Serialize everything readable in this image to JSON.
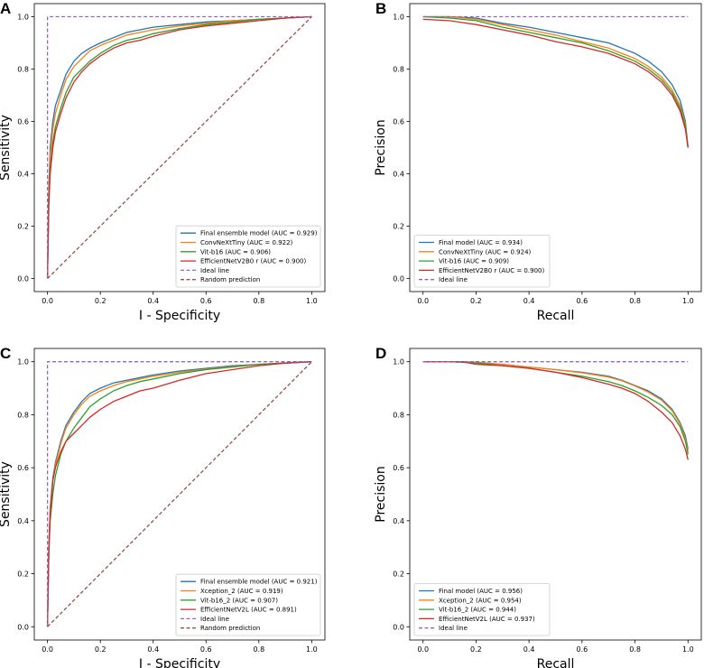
{
  "figure": {
    "colors": {
      "blue": "#1f77b4",
      "orange": "#ff7f0e",
      "green": "#2ca02c",
      "red": "#d62728",
      "purple": "#9467bd",
      "brown": "#8c564b"
    }
  },
  "chart_data": [
    {
      "panel": "A",
      "type": "line",
      "kind": "roc",
      "xlabel": "I - Specificity",
      "ylabel": "Sensitivity",
      "xlim": [
        0,
        1
      ],
      "ylim": [
        0,
        1
      ],
      "xticks": [
        "0.0",
        "0.2",
        "0.4",
        "0.6",
        "0.8",
        "1.0"
      ],
      "yticks": [
        "0.0",
        "0.2",
        "0.4",
        "0.6",
        "0.8",
        "1.0"
      ],
      "legend_position": "lower-right",
      "series": [
        {
          "name": "Final ensemble model (AUC = 0.929)",
          "color": "#1f77b4",
          "x": [
            0,
            0.005,
            0.01,
            0.02,
            0.03,
            0.05,
            0.07,
            0.1,
            0.13,
            0.16,
            0.2,
            0.25,
            0.3,
            0.35,
            0.4,
            0.5,
            0.6,
            0.7,
            0.8,
            0.9,
            1.0
          ],
          "y": [
            0,
            0.35,
            0.5,
            0.6,
            0.66,
            0.72,
            0.78,
            0.83,
            0.86,
            0.88,
            0.9,
            0.92,
            0.94,
            0.95,
            0.96,
            0.97,
            0.98,
            0.985,
            0.99,
            0.995,
            1.0
          ]
        },
        {
          "name": "ConvNeXtTiny (AUC = 0.922)",
          "color": "#ff7f0e",
          "x": [
            0,
            0.005,
            0.01,
            0.02,
            0.03,
            0.05,
            0.07,
            0.1,
            0.13,
            0.16,
            0.2,
            0.25,
            0.3,
            0.35,
            0.4,
            0.5,
            0.6,
            0.7,
            0.8,
            0.9,
            1.0
          ],
          "y": [
            0,
            0.33,
            0.47,
            0.57,
            0.63,
            0.7,
            0.76,
            0.81,
            0.84,
            0.87,
            0.89,
            0.91,
            0.93,
            0.94,
            0.95,
            0.965,
            0.975,
            0.985,
            0.99,
            0.995,
            1.0
          ]
        },
        {
          "name": "Vit-b16 (AUC = 0.906)",
          "color": "#2ca02c",
          "x": [
            0,
            0.005,
            0.01,
            0.02,
            0.03,
            0.05,
            0.07,
            0.1,
            0.13,
            0.16,
            0.2,
            0.25,
            0.3,
            0.35,
            0.4,
            0.5,
            0.6,
            0.7,
            0.8,
            0.9,
            1.0
          ],
          "y": [
            0,
            0.3,
            0.42,
            0.52,
            0.58,
            0.65,
            0.71,
            0.77,
            0.8,
            0.83,
            0.86,
            0.89,
            0.91,
            0.92,
            0.935,
            0.955,
            0.97,
            0.98,
            0.99,
            0.995,
            1.0
          ]
        },
        {
          "name": "EfficientNetV2B0 r (AUC = 0.900)",
          "color": "#d62728",
          "x": [
            0,
            0.005,
            0.01,
            0.02,
            0.03,
            0.05,
            0.07,
            0.1,
            0.13,
            0.16,
            0.2,
            0.25,
            0.3,
            0.35,
            0.4,
            0.5,
            0.6,
            0.7,
            0.8,
            0.9,
            1.0
          ],
          "y": [
            0,
            0.28,
            0.4,
            0.5,
            0.56,
            0.63,
            0.69,
            0.75,
            0.79,
            0.82,
            0.85,
            0.88,
            0.9,
            0.91,
            0.925,
            0.95,
            0.965,
            0.975,
            0.985,
            0.995,
            1.0
          ]
        },
        {
          "name": "Ideal line",
          "color": "#9467bd",
          "dashed": true,
          "x": [
            0,
            0,
            1
          ],
          "y": [
            0,
            1,
            1
          ]
        },
        {
          "name": "Random prediction",
          "color": "#8c564b",
          "dashed": true,
          "x": [
            0,
            1
          ],
          "y": [
            0,
            1
          ]
        }
      ]
    },
    {
      "panel": "B",
      "type": "line",
      "kind": "precision-recall",
      "xlabel": "Recall",
      "ylabel": "Precision",
      "xlim": [
        0,
        1
      ],
      "ylim": [
        0,
        1
      ],
      "xticks": [
        "0.0",
        "0.2",
        "0.4",
        "0.6",
        "0.8",
        "1.0"
      ],
      "yticks": [
        "0.0",
        "0.2",
        "0.4",
        "0.6",
        "0.8",
        "1.0"
      ],
      "legend_position": "lower-left",
      "series": [
        {
          "name": "Final model (AUC = 0.934)",
          "color": "#1f77b4",
          "x": [
            0,
            0.1,
            0.2,
            0.3,
            0.4,
            0.5,
            0.6,
            0.7,
            0.75,
            0.8,
            0.85,
            0.9,
            0.94,
            0.97,
            0.99,
            1.0
          ],
          "y": [
            1.0,
            1.0,
            0.995,
            0.975,
            0.96,
            0.94,
            0.92,
            0.9,
            0.88,
            0.86,
            0.83,
            0.79,
            0.74,
            0.68,
            0.6,
            0.5
          ]
        },
        {
          "name": "ConvNeXtTiny (AUC = 0.924)",
          "color": "#ff7f0e",
          "x": [
            0,
            0.1,
            0.2,
            0.3,
            0.4,
            0.5,
            0.6,
            0.7,
            0.75,
            0.8,
            0.85,
            0.9,
            0.94,
            0.97,
            0.99,
            1.0
          ],
          "y": [
            1.0,
            1.0,
            0.99,
            0.97,
            0.95,
            0.93,
            0.905,
            0.88,
            0.86,
            0.84,
            0.81,
            0.77,
            0.72,
            0.66,
            0.59,
            0.5
          ]
        },
        {
          "name": "Vit-b16 (AUC = 0.909)",
          "color": "#2ca02c",
          "x": [
            0,
            0.1,
            0.2,
            0.3,
            0.4,
            0.5,
            0.6,
            0.7,
            0.75,
            0.8,
            0.85,
            0.9,
            0.94,
            0.97,
            0.99,
            1.0
          ],
          "y": [
            1.0,
            0.995,
            0.985,
            0.96,
            0.94,
            0.92,
            0.9,
            0.87,
            0.85,
            0.83,
            0.8,
            0.76,
            0.71,
            0.65,
            0.58,
            0.5
          ]
        },
        {
          "name": "EfficientNetV2B0 r (AUC = 0.900)",
          "color": "#d62728",
          "x": [
            0,
            0.1,
            0.2,
            0.3,
            0.4,
            0.5,
            0.6,
            0.7,
            0.75,
            0.8,
            0.85,
            0.9,
            0.94,
            0.97,
            0.99,
            1.0
          ],
          "y": [
            0.99,
            0.985,
            0.97,
            0.95,
            0.93,
            0.905,
            0.885,
            0.86,
            0.84,
            0.82,
            0.79,
            0.75,
            0.7,
            0.64,
            0.57,
            0.5
          ]
        },
        {
          "name": "Ideal line",
          "color": "#9467bd",
          "dashed": true,
          "x": [
            0,
            1
          ],
          "y": [
            1,
            1
          ]
        }
      ]
    },
    {
      "panel": "C",
      "type": "line",
      "kind": "roc",
      "xlabel": "I - Specificity",
      "ylabel": "Sensitivity",
      "xlim": [
        0,
        1
      ],
      "ylim": [
        0,
        1
      ],
      "xticks": [
        "0.0",
        "0.2",
        "0.4",
        "0.6",
        "0.8",
        "1.0"
      ],
      "yticks": [
        "0.0",
        "0.2",
        "0.4",
        "0.6",
        "0.8",
        "1.0"
      ],
      "legend_position": "lower-right",
      "series": [
        {
          "name": "Final ensemble model (AUC = 0.921)",
          "color": "#1f77b4",
          "x": [
            0,
            0.005,
            0.01,
            0.02,
            0.03,
            0.05,
            0.07,
            0.1,
            0.13,
            0.16,
            0.2,
            0.25,
            0.3,
            0.35,
            0.4,
            0.5,
            0.6,
            0.7,
            0.8,
            0.9,
            1.0
          ],
          "y": [
            0,
            0.3,
            0.45,
            0.56,
            0.62,
            0.7,
            0.76,
            0.81,
            0.85,
            0.88,
            0.9,
            0.92,
            0.93,
            0.94,
            0.95,
            0.965,
            0.975,
            0.985,
            0.99,
            0.995,
            1.0
          ]
        },
        {
          "name": "Xception_2 (AUC = 0.919)",
          "color": "#ff7f0e",
          "x": [
            0,
            0.005,
            0.01,
            0.02,
            0.03,
            0.05,
            0.07,
            0.1,
            0.13,
            0.16,
            0.2,
            0.25,
            0.3,
            0.35,
            0.4,
            0.5,
            0.6,
            0.7,
            0.8,
            0.9,
            1.0
          ],
          "y": [
            0,
            0.3,
            0.44,
            0.55,
            0.61,
            0.69,
            0.75,
            0.8,
            0.84,
            0.87,
            0.89,
            0.91,
            0.925,
            0.935,
            0.945,
            0.96,
            0.972,
            0.982,
            0.99,
            0.995,
            1.0
          ]
        },
        {
          "name": "Vit-b16_2 (AUC = 0.907)",
          "color": "#2ca02c",
          "x": [
            0,
            0.005,
            0.01,
            0.02,
            0.03,
            0.05,
            0.07,
            0.1,
            0.13,
            0.16,
            0.2,
            0.25,
            0.3,
            0.35,
            0.4,
            0.5,
            0.6,
            0.7,
            0.8,
            0.9,
            1.0
          ],
          "y": [
            0,
            0.28,
            0.4,
            0.5,
            0.57,
            0.65,
            0.7,
            0.75,
            0.79,
            0.83,
            0.86,
            0.89,
            0.91,
            0.925,
            0.935,
            0.955,
            0.97,
            0.98,
            0.99,
            0.995,
            1.0
          ]
        },
        {
          "name": "EfficientNetV2L (AUC = 0.891)",
          "color": "#d62728",
          "x": [
            0,
            0.005,
            0.01,
            0.02,
            0.03,
            0.05,
            0.07,
            0.1,
            0.13,
            0.16,
            0.2,
            0.25,
            0.3,
            0.35,
            0.4,
            0.5,
            0.6,
            0.7,
            0.8,
            0.9,
            1.0
          ],
          "y": [
            0,
            0.28,
            0.42,
            0.55,
            0.6,
            0.66,
            0.7,
            0.73,
            0.76,
            0.79,
            0.82,
            0.85,
            0.87,
            0.89,
            0.9,
            0.93,
            0.955,
            0.97,
            0.985,
            0.995,
            1.0
          ]
        },
        {
          "name": "Ideal line",
          "color": "#9467bd",
          "dashed": true,
          "x": [
            0,
            0,
            1
          ],
          "y": [
            0,
            1,
            1
          ]
        },
        {
          "name": "Random prediction",
          "color": "#8c564b",
          "dashed": true,
          "x": [
            0,
            1
          ],
          "y": [
            0,
            1
          ]
        }
      ]
    },
    {
      "panel": "D",
      "type": "line",
      "kind": "precision-recall",
      "xlabel": "Recall",
      "ylabel": "Precision",
      "xlim": [
        0,
        1
      ],
      "ylim": [
        0,
        1
      ],
      "xticks": [
        "0.0",
        "0.2",
        "0.4",
        "0.6",
        "0.8",
        "1.0"
      ],
      "yticks": [
        "0.0",
        "0.2",
        "0.4",
        "0.6",
        "0.8",
        "1.0"
      ],
      "legend_position": "lower-left",
      "series": [
        {
          "name": "Final model (AUC = 0.956)",
          "color": "#1f77b4",
          "x": [
            0,
            0.1,
            0.2,
            0.3,
            0.4,
            0.5,
            0.6,
            0.7,
            0.75,
            0.8,
            0.85,
            0.9,
            0.94,
            0.97,
            0.99,
            1.0
          ],
          "y": [
            1.0,
            1.0,
            0.998,
            0.99,
            0.98,
            0.97,
            0.96,
            0.945,
            0.93,
            0.91,
            0.89,
            0.86,
            0.82,
            0.77,
            0.72,
            0.67
          ]
        },
        {
          "name": "Xception_2 (AUC = 0.954)",
          "color": "#ff7f0e",
          "x": [
            0,
            0.1,
            0.2,
            0.3,
            0.4,
            0.5,
            0.6,
            0.7,
            0.75,
            0.8,
            0.85,
            0.9,
            0.94,
            0.97,
            0.99,
            1.0
          ],
          "y": [
            1.0,
            1.0,
            0.997,
            0.99,
            0.98,
            0.97,
            0.958,
            0.942,
            0.928,
            0.908,
            0.885,
            0.855,
            0.815,
            0.765,
            0.71,
            0.66
          ]
        },
        {
          "name": "Vit-b16_2 (AUC = 0.944)",
          "color": "#2ca02c",
          "x": [
            0,
            0.1,
            0.2,
            0.3,
            0.4,
            0.5,
            0.6,
            0.7,
            0.75,
            0.8,
            0.85,
            0.9,
            0.94,
            0.97,
            0.99,
            1.0
          ],
          "y": [
            1.0,
            1.0,
            0.995,
            0.985,
            0.975,
            0.96,
            0.945,
            0.925,
            0.91,
            0.89,
            0.865,
            0.835,
            0.8,
            0.755,
            0.7,
            0.65
          ]
        },
        {
          "name": "EfficientNetV2L (AUC = 0.937)",
          "color": "#d62728",
          "x": [
            0,
            0.1,
            0.15,
            0.2,
            0.3,
            0.4,
            0.5,
            0.6,
            0.7,
            0.75,
            0.8,
            0.85,
            0.9,
            0.94,
            0.97,
            0.99,
            1.0
          ],
          "y": [
            1.0,
            1.0,
            1.0,
            0.99,
            0.985,
            0.975,
            0.96,
            0.94,
            0.915,
            0.9,
            0.88,
            0.85,
            0.81,
            0.77,
            0.72,
            0.67,
            0.63
          ]
        },
        {
          "name": "Ideal line",
          "color": "#9467bd",
          "dashed": true,
          "x": [
            0,
            1
          ],
          "y": [
            1,
            1
          ]
        }
      ]
    }
  ]
}
